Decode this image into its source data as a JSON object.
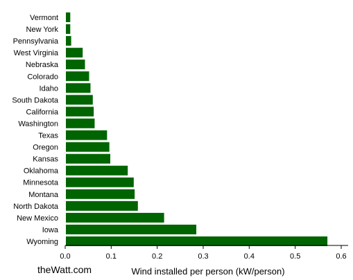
{
  "brand": "theWatt.com",
  "chart_data": {
    "type": "bar",
    "orientation": "horizontal",
    "xlabel": "Wind installed per person (kW/person)",
    "ylabel": "",
    "xlim": [
      0,
      0.6
    ],
    "xticks": [
      "0.0",
      "0.1",
      "0.2",
      "0.3",
      "0.4",
      "0.5",
      "0.6"
    ],
    "categories": [
      "Vermont",
      "New York",
      "Pennsylvania",
      "West Virginia",
      "Nebraska",
      "Colorado",
      "Idaho",
      "South Dakota",
      "California",
      "Washington",
      "Texas",
      "Oregon",
      "Kansas",
      "Oklahoma",
      "Minnesota",
      "Montana",
      "North Dakota",
      "New Mexico",
      "Iowa",
      "Wyoming"
    ],
    "values": [
      0.011,
      0.011,
      0.013,
      0.038,
      0.043,
      0.052,
      0.055,
      0.06,
      0.062,
      0.064,
      0.091,
      0.096,
      0.098,
      0.136,
      0.149,
      0.151,
      0.158,
      0.215,
      0.285,
      0.57
    ],
    "bar_color": "#006400",
    "grid": false
  }
}
